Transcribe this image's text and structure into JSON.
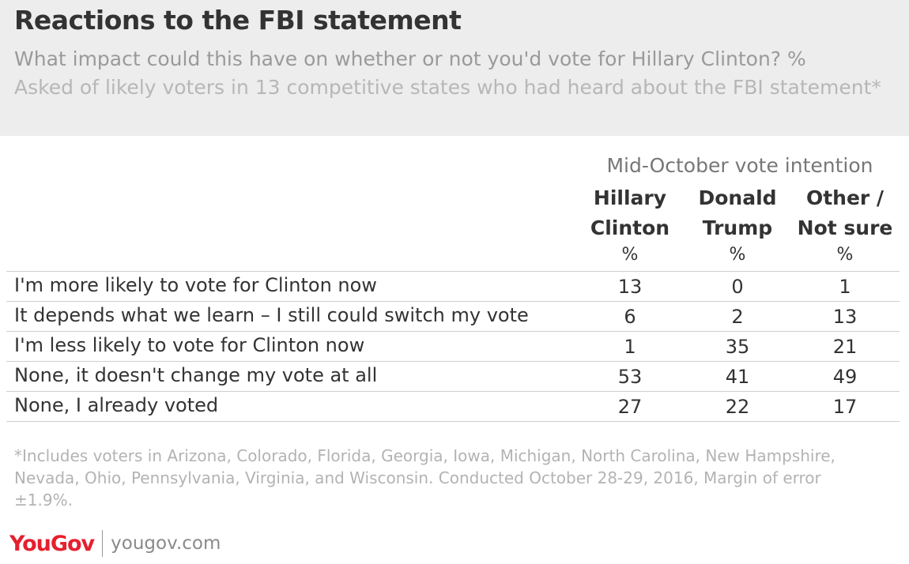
{
  "chart_data": {
    "type": "table",
    "title": "Reactions to the FBI statement",
    "subtitle": "What impact could this have on whether or not you'd vote for Hillary Clinton? %",
    "note": "Asked of likely voters in 13 competitive states who had heard about the FBI statement*",
    "group_label": "Mid-October vote intention",
    "columns": [
      {
        "line1": "Hillary",
        "line2": "Clinton",
        "unit": "%"
      },
      {
        "line1": "Donald",
        "line2": "Trump",
        "unit": "%"
      },
      {
        "line1": "Other /",
        "line2": "Not sure",
        "unit": "%"
      }
    ],
    "rows": [
      {
        "label": "I'm more likely to vote for Clinton now",
        "values": [
          "13",
          "0",
          "1"
        ]
      },
      {
        "label": "It depends what we learn – I still could switch my vote",
        "values": [
          "6",
          "2",
          "13"
        ]
      },
      {
        "label": "I'm less likely to vote for Clinton now",
        "values": [
          "1",
          "35",
          "21"
        ]
      },
      {
        "label": "None, it doesn't change my vote at all",
        "values": [
          "53",
          "41",
          "49"
        ]
      },
      {
        "label": "None, I already voted",
        "values": [
          "27",
          "22",
          "17"
        ]
      }
    ],
    "footnote": "*Includes voters in Arizona, Colorado, Florida, Georgia, Iowa, Michigan, North Carolina, New Hampshire, Nevada, Ohio, Pennsylvania, Virginia, and Wisconsin. Conducted October 28-29, 2016, Margin of error ±1.9%."
  },
  "branding": {
    "logo_text": "YouGov",
    "url": "yougov.com",
    "brand_color": "#e5202e"
  }
}
